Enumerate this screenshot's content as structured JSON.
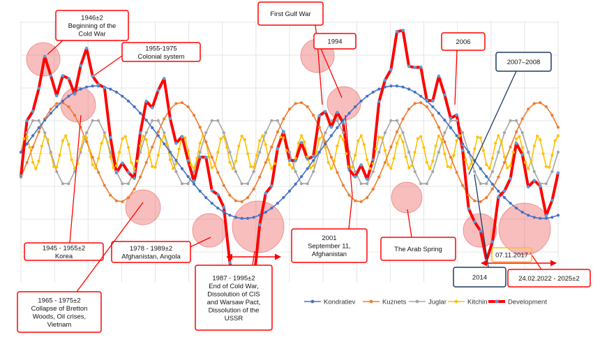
{
  "chart_data": {
    "type": "line",
    "grid": true,
    "legend": "bottom-right",
    "series": [
      {
        "name": "Kondratiev",
        "color": "#4472C4",
        "period": 50,
        "amplitude": 1.0,
        "start": 1940,
        "end": 2030,
        "points": 91
      },
      {
        "name": "Kuznets",
        "color": "#ED7D31",
        "period": 20,
        "amplitude": 0.75,
        "start": 1940,
        "end": 2030,
        "points": 91
      },
      {
        "name": "Juglar",
        "color": "#A5A5A5",
        "period": 10,
        "amplitude": 0.5,
        "start": 1940,
        "end": 2030,
        "points": 91
      },
      {
        "name": "Kitchin",
        "color": "#FFC000",
        "period": 3.3,
        "amplitude": 0.25,
        "start": 1940,
        "end": 2030,
        "points": 181
      },
      {
        "name": "Development",
        "color": "#FF0000",
        "start": 1940,
        "end": 2030,
        "points": 91
      }
    ],
    "annotations": [
      {
        "id": "a1946",
        "lines": [
          "1946±2",
          "Beginning of the",
          "Cold War"
        ],
        "border": "#FF0000"
      },
      {
        "id": "a1955",
        "lines": [
          "1955-1975",
          "Colonial system"
        ],
        "border": "#FF0000"
      },
      {
        "id": "gulf",
        "lines": [
          "First Gulf War"
        ],
        "border": "#FF0000"
      },
      {
        "id": "a1994",
        "lines": [
          "1994"
        ],
        "border": "#FF0000"
      },
      {
        "id": "a2006",
        "lines": [
          "2006"
        ],
        "border": "#FF0000"
      },
      {
        "id": "a2007",
        "lines": [
          "2007–2008"
        ],
        "border": "#1F3864"
      },
      {
        "id": "korea",
        "lines": [
          "1945 - 1955±2",
          "Korea"
        ],
        "border": "#FF0000"
      },
      {
        "id": "a1978",
        "lines": [
          "1978 - 1989±2",
          "Afghanistan, Angola"
        ],
        "border": "#FF0000"
      },
      {
        "id": "a2001",
        "lines": [
          "2001",
          "September 11,",
          "Afghanistan"
        ],
        "border": "#FF0000"
      },
      {
        "id": "arab",
        "lines": [
          "The Arab Spring"
        ],
        "border": "#FF0000"
      },
      {
        "id": "a1965",
        "lines": [
          "1965 - 1975±2",
          "Collapse of Bretton",
          "Woods, Oil crises,",
          "Vietnam"
        ],
        "border": "#FF0000"
      },
      {
        "id": "a1987",
        "lines": [
          "1987 - 1995±2",
          "End of Cold War,",
          "Dissolution of CIS",
          "and Warsaw Pact,",
          "Dissolution of the",
          "USSR"
        ],
        "border": "#FF0000"
      },
      {
        "id": "a2014",
        "lines": [
          "2014"
        ],
        "border": "#1F3864"
      },
      {
        "id": "a2022",
        "lines": [
          "24.02.2022 - 2025±2"
        ],
        "border": "#FF0000"
      },
      {
        "id": "a2017",
        "lines": [
          "07.11.2017"
        ],
        "border": "#FFC000"
      }
    ]
  }
}
